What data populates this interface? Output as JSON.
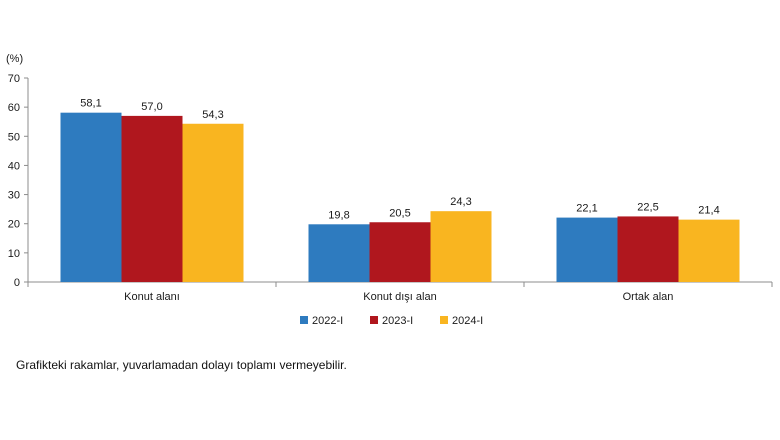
{
  "chart_data": {
    "type": "bar",
    "title": "",
    "xlabel": "",
    "ylabel": "(%)",
    "ylim": [
      0,
      70
    ],
    "yticks": [
      0,
      10,
      20,
      30,
      40,
      50,
      60,
      70
    ],
    "categories": [
      "Konut alanı",
      "Konut dışı alan",
      "Ortak alan"
    ],
    "series": [
      {
        "name": "2022-I",
        "color": "#2e7bbf",
        "values": [
          58.1,
          19.8,
          22.1
        ],
        "labels": [
          "58,1",
          "19,8",
          "22,1"
        ]
      },
      {
        "name": "2023-I",
        "color": "#b0171e",
        "values": [
          57.0,
          20.5,
          22.5
        ],
        "labels": [
          "57,0",
          "20,5",
          "22,5"
        ]
      },
      {
        "name": "2024-I",
        "color": "#f9b520",
        "values": [
          54.3,
          24.3,
          21.4
        ],
        "labels": [
          "54,3",
          "24,3",
          "21,4"
        ]
      }
    ],
    "legend_position": "bottom",
    "grid": false
  },
  "note": "Grafikteki rakamlar, yuvarlamadan dolayı toplamı vermeyebilir."
}
